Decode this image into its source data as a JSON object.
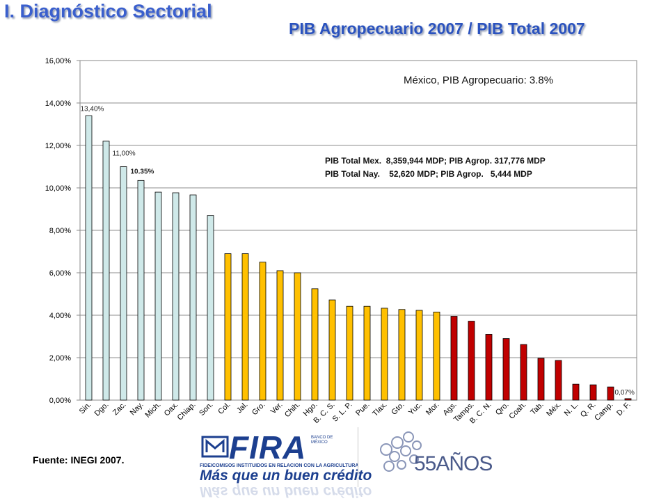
{
  "slide": {
    "title": "I. Diagnóstico Sectorial",
    "chart_heading": "PIB Agropecuario 2007 / PIB Total 2007",
    "source": "Fuente: INEGI 2007.",
    "annotation_mexico": "México, PIB Agropecuario: 3.8%",
    "annotation_line1": "PIB Total Mex.  8,359,944 MDP; PIB Agrop. 317,776 MDP",
    "annotation_line2": "PIB Total Nay.    52,620 MDP; PIB Agrop.   5,444 MDP"
  },
  "logo": {
    "brand": "FIRA",
    "brand_small": "FIDEICOMISOS INSTITUIDOS EN RELACION CON LA AGRICULTURA",
    "brand_side": "BANCO DE MÉXICO",
    "tagline": "Más que un buen crédito",
    "anniversary": "55AÑOS",
    "colors": {
      "brand": "#1c3f8f"
    }
  },
  "chart_data": {
    "type": "bar",
    "title": "PIB Agropecuario 2007 / PIB Total 2007",
    "xlabel": "",
    "ylabel": "",
    "ylim": [
      0,
      16
    ],
    "yticks": [
      "0,00%",
      "2,00%",
      "4,00%",
      "6,00%",
      "8,00%",
      "10,00%",
      "12,00%",
      "14,00%",
      "16,00%"
    ],
    "grid": true,
    "categories": [
      "Sin.",
      "Dgo.",
      "Zac.",
      "Nay.",
      "Mich.",
      "Oax.",
      "Chiap.",
      "Son.",
      "Col.",
      "Jal.",
      "Gro.",
      "Ver.",
      "Chih.",
      "Hgo.",
      "B. C. S.",
      "S. L. P.",
      "Pue.",
      "Tlax.",
      "Gto.",
      "Yuc.",
      "Mor.",
      "Ags.",
      "Tamps.",
      "B. C. N.",
      "Qro.",
      "Coah.",
      "Tab.",
      "Méx.",
      "N. L.",
      "Q. R.",
      "Camp.",
      "D. F."
    ],
    "values": [
      13.4,
      12.2,
      11.0,
      10.35,
      9.8,
      9.77,
      9.67,
      8.7,
      6.9,
      6.9,
      6.5,
      6.1,
      6.0,
      5.25,
      4.72,
      4.42,
      4.42,
      4.33,
      4.27,
      4.23,
      4.15,
      3.95,
      3.72,
      3.1,
      2.9,
      2.62,
      1.97,
      1.87,
      0.75,
      0.72,
      0.62,
      0.07
    ],
    "groups": [
      "high",
      "high",
      "high",
      "high",
      "high",
      "high",
      "high",
      "high",
      "mid",
      "mid",
      "mid",
      "mid",
      "mid",
      "mid",
      "mid",
      "mid",
      "mid",
      "mid",
      "mid",
      "mid",
      "mid",
      "low",
      "low",
      "low",
      "low",
      "low",
      "low",
      "low",
      "low",
      "low",
      "low",
      "low"
    ],
    "group_colors": {
      "high": "#cfe9e9",
      "mid": "#ffc000",
      "low": "#c00000"
    },
    "data_labels": [
      {
        "index": 0,
        "text": "13,40%"
      },
      {
        "index": 2,
        "text": "11,00%"
      },
      {
        "index": 3,
        "text": "10.35%",
        "bold": true
      },
      {
        "index": 31,
        "text": "0,07%"
      }
    ]
  }
}
